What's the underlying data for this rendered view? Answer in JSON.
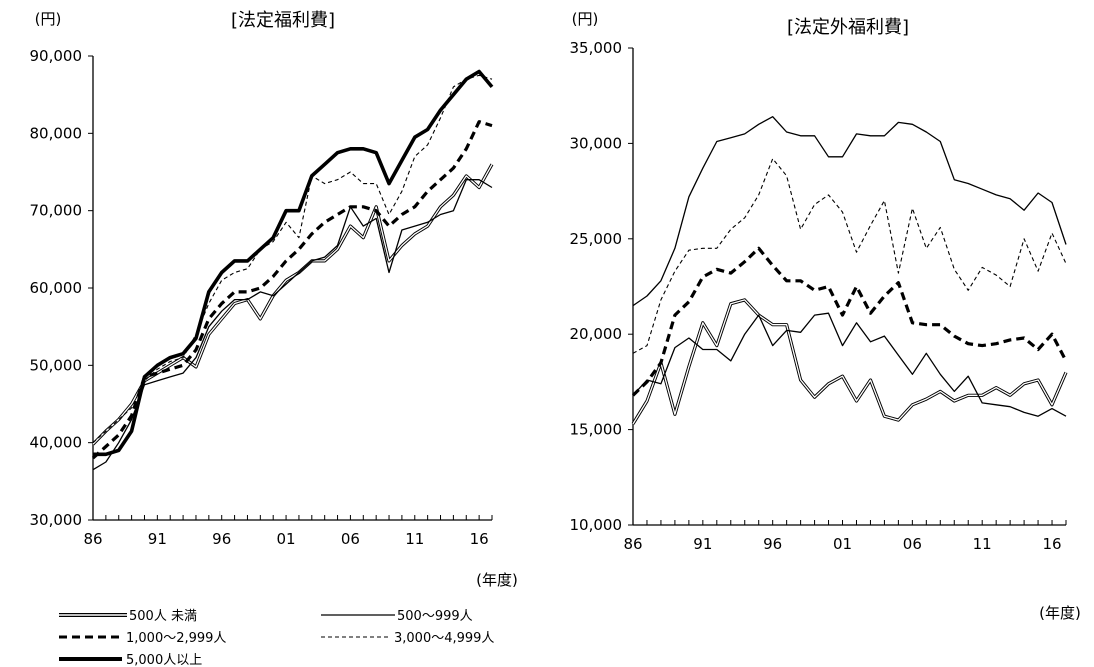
{
  "legend": [
    {
      "name": "500人 未満"
    },
    {
      "name": "500～999人"
    },
    {
      "name": "1,000～2,999人"
    },
    {
      "name": "3,000～4,999人"
    },
    {
      "name": "5,000人以上"
    }
  ],
  "chart_data": [
    {
      "type": "line",
      "title": "[法定福利費]",
      "ylabel": "(円)",
      "xlabel": "(年度)",
      "ylim": [
        30000,
        90000
      ],
      "yticks": [
        30000,
        40000,
        50000,
        60000,
        70000,
        80000,
        90000
      ],
      "ytick_labels": [
        "30,000",
        "40,000",
        "50,000",
        "60,000",
        "70,000",
        "80,000",
        "90,000"
      ],
      "xrange": [
        1986,
        2017
      ],
      "xtick_labels": [
        {
          "x": 1986,
          "label": "86"
        },
        {
          "x": 1991,
          "label": "91"
        },
        {
          "x": 1996,
          "label": "96"
        },
        {
          "x": 2001,
          "label": "01"
        },
        {
          "x": 2006,
          "label": "06"
        },
        {
          "x": 2011,
          "label": "11"
        },
        {
          "x": 2016,
          "label": "16"
        }
      ],
      "grid": false,
      "x": [
        1986,
        1987,
        1988,
        1989,
        1990,
        1991,
        1992,
        1993,
        1994,
        1995,
        1996,
        1997,
        1998,
        1999,
        2000,
        2001,
        2002,
        2003,
        2004,
        2005,
        2006,
        2007,
        2008,
        2009,
        2010,
        2011,
        2012,
        2013,
        2014,
        2015,
        2016,
        2017
      ],
      "series": [
        {
          "name": "500人 未満",
          "style": "double",
          "values": [
            39800,
            41500,
            43000,
            45000,
            48000,
            49000,
            50000,
            51000,
            49800,
            54000,
            56000,
            58000,
            58500,
            56000,
            59000,
            61000,
            62000,
            63500,
            63500,
            65000,
            68000,
            66500,
            70500,
            63500,
            65500,
            67000,
            68000,
            70500,
            72000,
            74500,
            73000,
            76000
          ]
        },
        {
          "name": "500～999人",
          "style": "thin",
          "values": [
            36500,
            37500,
            40000,
            43000,
            47500,
            48000,
            48500,
            49000,
            51000,
            55000,
            57000,
            58500,
            58500,
            59500,
            59000,
            60500,
            62000,
            63500,
            64000,
            65500,
            70500,
            68000,
            69000,
            62000,
            67500,
            68000,
            68500,
            69500,
            70000,
            74000,
            74000,
            73000
          ]
        },
        {
          "name": "1,000～2,999人",
          "style": "dashed-bold",
          "values": [
            38000,
            39500,
            41000,
            43500,
            48500,
            49000,
            49500,
            50000,
            52000,
            56000,
            58000,
            59500,
            59500,
            60000,
            61500,
            63500,
            65000,
            67000,
            68500,
            69500,
            70500,
            70500,
            70000,
            68000,
            69500,
            70500,
            72500,
            74000,
            75500,
            78000,
            81500,
            81000
          ]
        },
        {
          "name": "3,000～4,999人",
          "style": "dashed-thin",
          "values": [
            40000,
            41500,
            43000,
            44500,
            48000,
            49500,
            50500,
            51000,
            54000,
            58000,
            61000,
            62000,
            62500,
            65000,
            66000,
            68500,
            66500,
            74500,
            73500,
            74000,
            75000,
            73500,
            73500,
            69500,
            72500,
            77000,
            78500,
            82000,
            86000,
            87000,
            87500,
            87000
          ]
        },
        {
          "name": "5,000人以上",
          "style": "bold",
          "values": [
            38500,
            38500,
            39000,
            41500,
            48500,
            50000,
            51000,
            51500,
            53500,
            59500,
            62000,
            63500,
            63500,
            65000,
            66500,
            70000,
            70000,
            74500,
            76000,
            77500,
            78000,
            78000,
            77500,
            73500,
            76500,
            79500,
            80500,
            83000,
            85000,
            87000,
            88000,
            86000
          ]
        }
      ]
    },
    {
      "type": "line",
      "title": "[法定外福利費]",
      "ylabel": "(円)",
      "xlabel": "(年度)",
      "ylim": [
        10000,
        35000
      ],
      "yticks": [
        10000,
        15000,
        20000,
        25000,
        30000,
        35000
      ],
      "ytick_labels": [
        "10,000",
        "15,000",
        "20,000",
        "25,000",
        "30,000",
        "35,000"
      ],
      "xrange": [
        1986,
        2017
      ],
      "xtick_labels": [
        {
          "x": 1986,
          "label": "86"
        },
        {
          "x": 1991,
          "label": "91"
        },
        {
          "x": 1996,
          "label": "96"
        },
        {
          "x": 2001,
          "label": "01"
        },
        {
          "x": 2006,
          "label": "06"
        },
        {
          "x": 2011,
          "label": "11"
        },
        {
          "x": 2016,
          "label": "16"
        }
      ],
      "grid": false,
      "x": [
        1986,
        1987,
        1988,
        1989,
        1990,
        1991,
        1992,
        1993,
        1994,
        1995,
        1996,
        1997,
        1998,
        1999,
        2000,
        2001,
        2002,
        2003,
        2004,
        2005,
        2006,
        2007,
        2008,
        2009,
        2010,
        2011,
        2012,
        2013,
        2014,
        2015,
        2016,
        2017
      ],
      "series": [
        {
          "name": "500人 未満",
          "style": "double",
          "values": [
            15300,
            16500,
            18500,
            15800,
            18300,
            20600,
            19400,
            21600,
            21800,
            21000,
            20500,
            20500,
            17600,
            16700,
            17400,
            17800,
            16500,
            17600,
            15700,
            15500,
            16300,
            16600,
            17000,
            16500,
            16800,
            16800,
            17200,
            16800,
            17400,
            17600,
            16300,
            18000
          ]
        },
        {
          "name": "500～999人",
          "style": "thin",
          "values": [
            16800,
            17600,
            17400,
            19300,
            19800,
            19200,
            19200,
            18600,
            20000,
            21000,
            19400,
            20200,
            20100,
            21000,
            21100,
            19400,
            20600,
            19600,
            19900,
            18900,
            17900,
            19000,
            17900,
            17000,
            17800,
            16400,
            16300,
            16200,
            15900,
            15700,
            16100,
            15700
          ]
        },
        {
          "name": "1,000～2,999人",
          "style": "dashed-bold",
          "values": [
            16800,
            17500,
            18500,
            21000,
            21700,
            23000,
            23400,
            23200,
            23800,
            24500,
            23600,
            22800,
            22800,
            22300,
            22500,
            21000,
            22500,
            21100,
            22000,
            22700,
            20600,
            20500,
            20500,
            19900,
            19500,
            19400,
            19500,
            19700,
            19800,
            19200,
            20000,
            18600
          ]
        },
        {
          "name": "3,000～4,999人",
          "style": "dashed-thin",
          "values": [
            19000,
            19400,
            21800,
            23300,
            24400,
            24500,
            24500,
            25500,
            26100,
            27300,
            29200,
            28300,
            25500,
            26800,
            27300,
            26400,
            24300,
            25700,
            27000,
            23200,
            26600,
            24500,
            25600,
            23400,
            22300,
            23500,
            23100,
            22500,
            25000,
            23300,
            25300,
            23700
          ]
        },
        {
          "name": "5,000人以上",
          "style": "thin",
          "values": [
            21500,
            22000,
            22800,
            24500,
            27200,
            28700,
            30100,
            30300,
            30500,
            31000,
            31400,
            30600,
            30400,
            30400,
            29300,
            29300,
            30500,
            30400,
            30400,
            31100,
            31000,
            30600,
            30100,
            28100,
            27900,
            27600,
            27300,
            27100,
            26500,
            27400,
            26900,
            24700
          ]
        }
      ]
    }
  ]
}
